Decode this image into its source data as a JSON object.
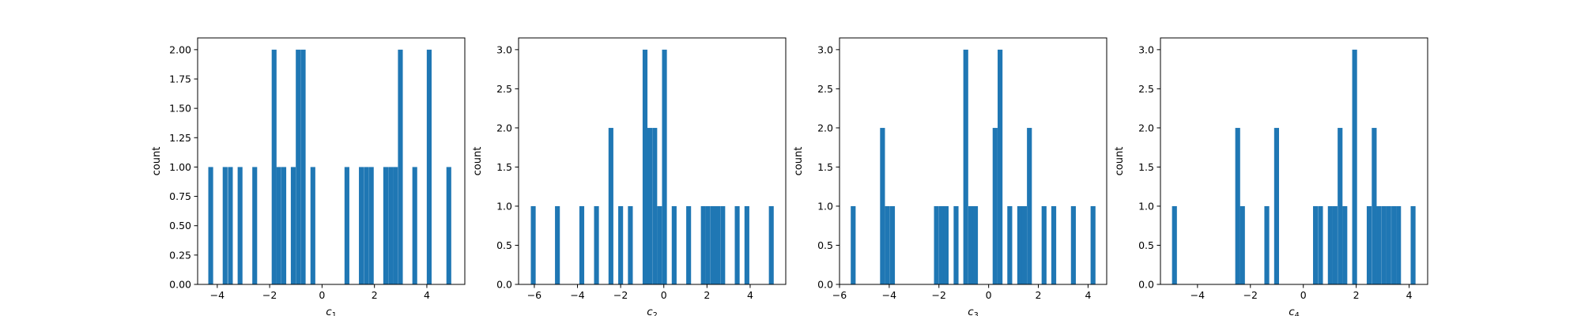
{
  "chart_data": [
    {
      "type": "bar",
      "xlabel": "c",
      "xlabel_sub": "1",
      "ylabel": "count",
      "xlim": [
        -4.75,
        5.45
      ],
      "ylim": [
        0,
        2.1
      ],
      "xticks": [
        -4,
        -2,
        0,
        2,
        4
      ],
      "xtick_labels": [
        "−4",
        "−2",
        "0",
        "2",
        "4"
      ],
      "yticks": [
        0,
        0.25,
        0.5,
        0.75,
        1,
        1.25,
        1.5,
        1.75,
        2
      ],
      "ytick_labels": [
        "0.00",
        "0.25",
        "0.50",
        "0.75",
        "1.00",
        "1.25",
        "1.50",
        "1.75",
        "2.00"
      ],
      "bin_edges_range": [
        -4.3,
        4.95
      ],
      "bin_count": 50,
      "bars": [
        {
          "x": -4.25,
          "count": 1
        },
        {
          "x": -3.7,
          "count": 1
        },
        {
          "x": -3.5,
          "count": 1
        },
        {
          "x": -3.13,
          "count": 1
        },
        {
          "x": -2.57,
          "count": 1
        },
        {
          "x": -1.83,
          "count": 2
        },
        {
          "x": -1.65,
          "count": 1
        },
        {
          "x": -1.46,
          "count": 1
        },
        {
          "x": -1.1,
          "count": 1
        },
        {
          "x": -0.91,
          "count": 2
        },
        {
          "x": -0.72,
          "count": 2
        },
        {
          "x": -0.35,
          "count": 1
        },
        {
          "x": 0.95,
          "count": 1
        },
        {
          "x": 1.5,
          "count": 1
        },
        {
          "x": 1.69,
          "count": 1
        },
        {
          "x": 1.88,
          "count": 1
        },
        {
          "x": 2.43,
          "count": 1
        },
        {
          "x": 2.62,
          "count": 1
        },
        {
          "x": 2.8,
          "count": 1
        },
        {
          "x": 2.99,
          "count": 2
        },
        {
          "x": 3.54,
          "count": 1
        },
        {
          "x": 4.09,
          "count": 2
        },
        {
          "x": 4.84,
          "count": 1
        }
      ]
    },
    {
      "type": "bar",
      "xlabel": "c",
      "xlabel_sub": "2",
      "ylabel": "count",
      "xlim": [
        -6.73,
        5.65
      ],
      "ylim": [
        0,
        3.15
      ],
      "xticks": [
        -6,
        -4,
        -2,
        0,
        2,
        4
      ],
      "xtick_labels": [
        "−6",
        "−4",
        "−2",
        "0",
        "2",
        "4"
      ],
      "yticks": [
        0,
        0.5,
        1,
        1.5,
        2,
        2.5,
        3
      ],
      "ytick_labels": [
        "0.0",
        "0.5",
        "1.0",
        "1.5",
        "2.0",
        "2.5",
        "3.0"
      ],
      "bin_edges_range": [
        -6.17,
        5.08
      ],
      "bin_count": 50,
      "bars": [
        {
          "x": -6.05,
          "count": 1
        },
        {
          "x": -4.93,
          "count": 1
        },
        {
          "x": -3.8,
          "count": 1
        },
        {
          "x": -3.12,
          "count": 1
        },
        {
          "x": -2.45,
          "count": 2
        },
        {
          "x": -2.0,
          "count": 1
        },
        {
          "x": -1.55,
          "count": 1
        },
        {
          "x": -0.87,
          "count": 3
        },
        {
          "x": -0.65,
          "count": 2
        },
        {
          "x": -0.42,
          "count": 2
        },
        {
          "x": -0.2,
          "count": 1
        },
        {
          "x": 0.03,
          "count": 3
        },
        {
          "x": 0.48,
          "count": 1
        },
        {
          "x": 1.15,
          "count": 1
        },
        {
          "x": 1.83,
          "count": 1
        },
        {
          "x": 2.05,
          "count": 1
        },
        {
          "x": 2.28,
          "count": 1
        },
        {
          "x": 2.5,
          "count": 1
        },
        {
          "x": 2.73,
          "count": 1
        },
        {
          "x": 3.4,
          "count": 1
        },
        {
          "x": 3.85,
          "count": 1
        },
        {
          "x": 4.98,
          "count": 1
        }
      ]
    },
    {
      "type": "bar",
      "xlabel": "c",
      "xlabel_sub": "3",
      "ylabel": "count",
      "xlim": [
        -6.0,
        4.75
      ],
      "ylim": [
        0,
        3.15
      ],
      "xticks": [
        -6,
        -4,
        -2,
        0,
        2,
        4
      ],
      "xtick_labels": [
        "−6",
        "−4",
        "−2",
        "0",
        "2",
        "4"
      ],
      "yticks": [
        0,
        0.5,
        1,
        1.5,
        2,
        2.5,
        3
      ],
      "ytick_labels": [
        "0.0",
        "0.5",
        "1.0",
        "1.5",
        "2.0",
        "2.5",
        "3.0"
      ],
      "bin_edges_range": [
        -5.55,
        4.3
      ],
      "bin_count": 50,
      "bars": [
        {
          "x": -5.45,
          "count": 1
        },
        {
          "x": -4.27,
          "count": 2
        },
        {
          "x": -4.07,
          "count": 1
        },
        {
          "x": -3.87,
          "count": 1
        },
        {
          "x": -2.1,
          "count": 1
        },
        {
          "x": -1.9,
          "count": 1
        },
        {
          "x": -1.71,
          "count": 1
        },
        {
          "x": -1.31,
          "count": 1
        },
        {
          "x": -0.92,
          "count": 3
        },
        {
          "x": -0.72,
          "count": 1
        },
        {
          "x": -0.53,
          "count": 1
        },
        {
          "x": 0.26,
          "count": 2
        },
        {
          "x": 0.46,
          "count": 3
        },
        {
          "x": 0.85,
          "count": 1
        },
        {
          "x": 1.25,
          "count": 1
        },
        {
          "x": 1.44,
          "count": 1
        },
        {
          "x": 1.64,
          "count": 2
        },
        {
          "x": 2.23,
          "count": 1
        },
        {
          "x": 2.62,
          "count": 1
        },
        {
          "x": 3.41,
          "count": 1
        },
        {
          "x": 4.2,
          "count": 1
        }
      ]
    },
    {
      "type": "bar",
      "xlabel": "c",
      "xlabel_sub": "4",
      "ylabel": "count",
      "xlim": [
        -5.4,
        4.7
      ],
      "ylim": [
        0,
        3.15
      ],
      "xticks": [
        -4,
        -2,
        0,
        2,
        4
      ],
      "xtick_labels": [
        "−4",
        "−2",
        "0",
        "2",
        "4"
      ],
      "yticks": [
        0,
        0.5,
        1,
        1.5,
        2,
        2.5,
        3
      ],
      "ytick_labels": [
        "0.0",
        "0.5",
        "1.0",
        "1.5",
        "2.0",
        "2.5",
        "3.0"
      ],
      "bin_edges_range": [
        -4.96,
        4.26
      ],
      "bin_count": 50,
      "bars": [
        {
          "x": -4.87,
          "count": 1
        },
        {
          "x": -2.48,
          "count": 2
        },
        {
          "x": -2.3,
          "count": 1
        },
        {
          "x": -1.38,
          "count": 1
        },
        {
          "x": -1.01,
          "count": 2
        },
        {
          "x": 0.46,
          "count": 1
        },
        {
          "x": 0.65,
          "count": 1
        },
        {
          "x": 1.02,
          "count": 1
        },
        {
          "x": 1.2,
          "count": 1
        },
        {
          "x": 1.39,
          "count": 2
        },
        {
          "x": 1.57,
          "count": 1
        },
        {
          "x": 1.94,
          "count": 3
        },
        {
          "x": 2.49,
          "count": 1
        },
        {
          "x": 2.68,
          "count": 2
        },
        {
          "x": 2.86,
          "count": 1
        },
        {
          "x": 3.05,
          "count": 1
        },
        {
          "x": 3.23,
          "count": 1
        },
        {
          "x": 3.42,
          "count": 1
        },
        {
          "x": 3.6,
          "count": 1
        },
        {
          "x": 4.15,
          "count": 1
        }
      ]
    }
  ],
  "colors": {
    "bar": "#1f77b4",
    "axes": "#000000",
    "background": "#ffffff"
  }
}
